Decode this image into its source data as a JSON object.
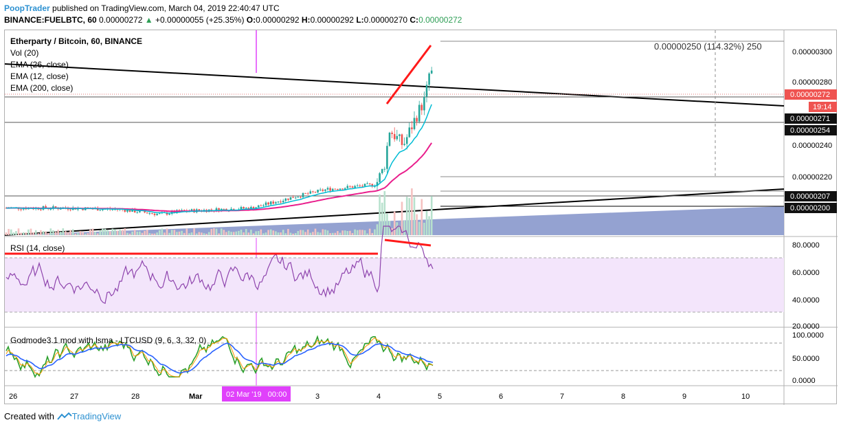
{
  "header": {
    "author": "PoopTrader",
    "published": "published on TradingView.com, March 04, 2019 22:40:47 UTC",
    "symbol_line": "BINANCE:FUELBTC, 60",
    "last": "0.00000272",
    "change": "+0.00000055 (+25.35%)",
    "o_label": "O:",
    "o": "0.00000292",
    "h_label": "H:",
    "h": "0.00000292",
    "l_label": "L:",
    "l": "0.00000270",
    "c_label": "C:",
    "c": "0.00000272"
  },
  "legend": {
    "title": "Etherparty / Bitcoin, 60, BINANCE",
    "vol": "Vol (20)",
    "ema1": "EMA (26, close)",
    "ema2": "EMA (12, close)",
    "ema3": "EMA (200, close)"
  },
  "measure_label": "0.00000250 (114.32%) 250",
  "price_axis": {
    "ticks": [
      "0.00000300",
      "0.00000280",
      "0.00000240",
      "0.00000220"
    ],
    "badges": [
      {
        "text": "0.00000272",
        "style": "red"
      },
      {
        "text": "19:14",
        "style": "red"
      },
      {
        "text": "0.00000271",
        "style": "dark"
      },
      {
        "text": "0.00000254",
        "style": "dark"
      },
      {
        "text": "0.00000207",
        "style": "dark"
      },
      {
        "text": "0.00000200",
        "style": "dark"
      }
    ]
  },
  "rsi": {
    "label": "RSI (14, close)",
    "ticks": [
      "80.0000",
      "60.0000",
      "40.0000",
      "20.0000"
    ]
  },
  "godmode": {
    "label": "Godmode3.1 mod with lsma - LTCUSD (9, 6, 3, 32, 0)",
    "ticks": [
      "100.0000",
      "50.0000",
      "0.0000"
    ]
  },
  "time_axis": {
    "labels": [
      "26",
      "27",
      "28",
      "Mar",
      "3",
      "4",
      "5",
      "6",
      "7",
      "8",
      "9",
      "10"
    ],
    "crosshair_label": "02 Mar '19   00:00"
  },
  "footer": {
    "created_with": "Created with",
    "brand": "TradingView"
  },
  "colors": {
    "up": "#26a69a",
    "down": "#ef5350",
    "ema_fast": "#00bcd4",
    "ema_slow": "#e91e8c",
    "trend": "#000000",
    "annotation": "#ff0000",
    "rsi_line": "#8e44ad",
    "rsi_band": "#f3e5fb",
    "god_green": "#2ca02c",
    "god_blue": "#2962ff",
    "god_orange": "#ff9800",
    "crosshair": "#e040fb",
    "fill_blue": "#8898cc"
  },
  "chart_data": {
    "type": "candlestick",
    "x_labels": [
      "26",
      "27",
      "28",
      "Mar",
      "3",
      "4",
      "5",
      "6",
      "7",
      "8",
      "9",
      "10"
    ],
    "price_ticks": [
      3e-06,
      2.8e-06,
      2.4e-06,
      2.2e-06
    ],
    "last_price": 2.72e-06,
    "measure": {
      "value": 2.5e-06,
      "percent": 114.32,
      "bars": 250
    },
    "levels": [
      2.71e-06,
      2.54e-06,
      2.07e-06,
      2e-06
    ],
    "close_path": [
      {
        "x": "26",
        "y": 2e-06
      },
      {
        "x": "27",
        "y": 2e-06
      },
      {
        "x": "28",
        "y": 1.97e-06
      },
      {
        "x": "Mar",
        "y": 1.99e-06
      },
      {
        "x": "3",
        "y": 2.12e-06
      },
      {
        "x": "4",
        "y": 2.2e-06
      },
      {
        "x": "4.1",
        "y": 2.5e-06
      },
      {
        "x": "4.5",
        "y": 2.7e-06
      },
      {
        "x": "4.8",
        "y": 2.92e-06
      },
      {
        "x": "4.9",
        "y": 2.72e-06
      }
    ],
    "rsi_ticks": [
      80,
      60,
      40,
      20
    ],
    "godmode_ticks": [
      100,
      50,
      0
    ]
  }
}
